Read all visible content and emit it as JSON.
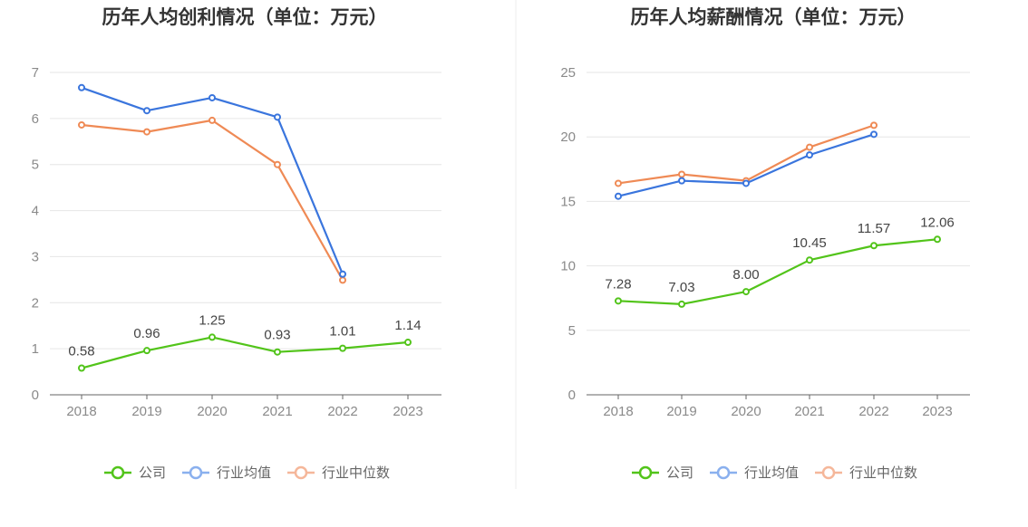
{
  "chart_data": [
    {
      "type": "line",
      "title": "历年人均创利情况（单位：万元）",
      "categories": [
        "2018",
        "2019",
        "2020",
        "2021",
        "2022",
        "2023"
      ],
      "ylim": [
        0,
        7
      ],
      "yticks": [
        "0",
        "1",
        "2",
        "3",
        "4",
        "5",
        "6",
        "7"
      ],
      "grid": true,
      "legend_position": "bottom",
      "series": [
        {
          "name": "公司",
          "color": "#52c41a",
          "values": [
            0.58,
            0.96,
            1.25,
            0.93,
            1.01,
            1.14
          ],
          "labels": [
            "0.58",
            "0.96",
            "1.25",
            "0.93",
            "1.01",
            "1.14"
          ]
        },
        {
          "name": "行业均值",
          "color": "#3a75dd",
          "values": [
            6.67,
            6.17,
            6.45,
            6.03,
            2.62,
            null
          ]
        },
        {
          "name": "行业中位数",
          "color": "#ef8a55",
          "values": [
            5.86,
            5.71,
            5.96,
            5.0,
            2.49,
            null
          ]
        }
      ]
    },
    {
      "type": "line",
      "title": "历年人均薪酬情况（单位：万元）",
      "categories": [
        "2018",
        "2019",
        "2020",
        "2021",
        "2022",
        "2023"
      ],
      "ylim": [
        0,
        25
      ],
      "yticks": [
        "0",
        "5",
        "10",
        "15",
        "20",
        "25"
      ],
      "grid": true,
      "legend_position": "bottom",
      "series": [
        {
          "name": "公司",
          "color": "#52c41a",
          "values": [
            7.28,
            7.03,
            8.0,
            10.45,
            11.57,
            12.06
          ],
          "labels": [
            "7.28",
            "7.03",
            "8.00",
            "10.45",
            "11.57",
            "12.06"
          ]
        },
        {
          "name": "行业均值",
          "color": "#3a75dd",
          "values": [
            15.4,
            16.6,
            16.4,
            18.6,
            20.2,
            null
          ]
        },
        {
          "name": "行业中位数",
          "color": "#ef8a55",
          "values": [
            16.4,
            17.1,
            16.6,
            19.2,
            20.9,
            null
          ]
        }
      ]
    }
  ],
  "legend_colors": {
    "公司": "#52c41a",
    "行业均值": "#8ab0ee",
    "行业中位数": "#f5b79a"
  }
}
